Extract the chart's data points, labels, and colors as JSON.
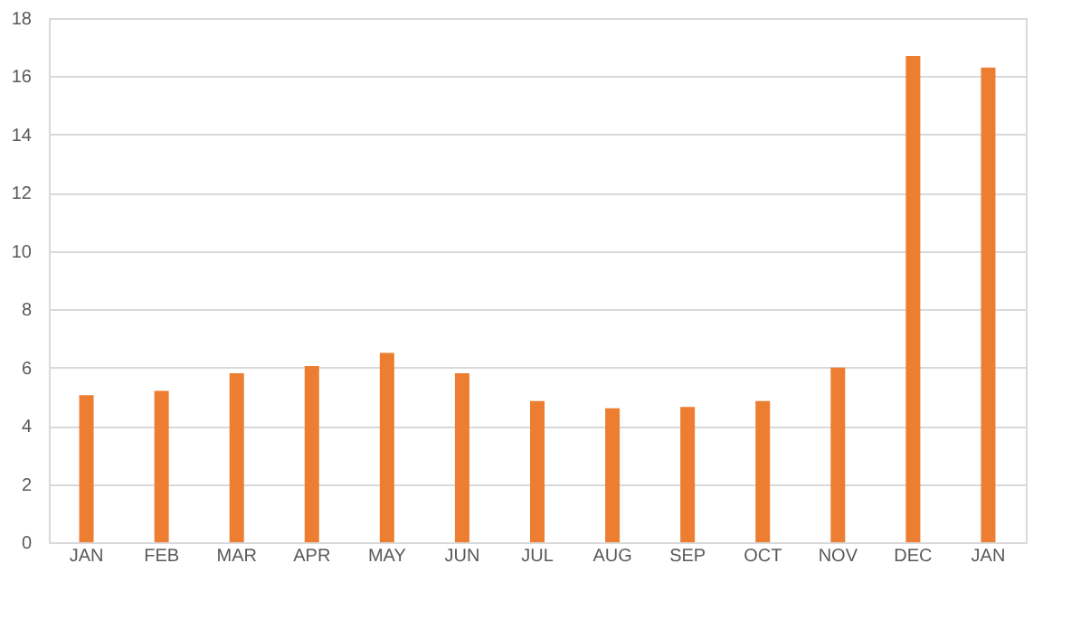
{
  "chart_data": {
    "type": "bar",
    "categories": [
      "JAN",
      "FEB",
      "MAR",
      "APR",
      "MAY",
      "JUN",
      "JUL",
      "AUG",
      "SEP",
      "OCT",
      "NOV",
      "DEC",
      "JAN"
    ],
    "values": [
      5.05,
      5.2,
      5.8,
      6.05,
      6.5,
      5.8,
      4.85,
      4.6,
      4.65,
      4.85,
      6.0,
      16.7,
      16.3
    ],
    "color": "#ed7d31",
    "ylim": [
      0,
      18
    ],
    "yticks": [
      0,
      2,
      4,
      6,
      8,
      10,
      12,
      14,
      16,
      18
    ],
    "grid": "y"
  }
}
